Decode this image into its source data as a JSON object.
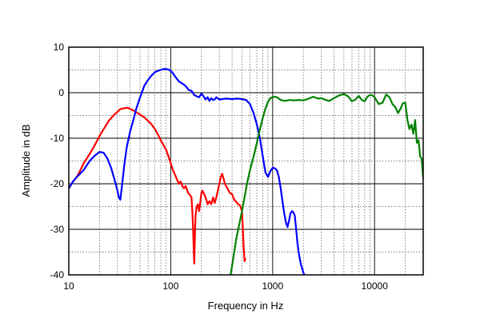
{
  "chart_data": {
    "type": "line",
    "xscale": "log",
    "xlim": [
      10,
      30000
    ],
    "ylim": [
      -40,
      10
    ],
    "xlabel": "Frequency in Hz",
    "ylabel": "Amplitude in dB",
    "grid": true,
    "xticks": [
      10,
      100,
      1000,
      10000
    ],
    "xtick_labels": [
      "10",
      "100",
      "1000",
      "10000"
    ],
    "yticks": [
      10,
      0,
      -10,
      -20,
      -30,
      -40
    ],
    "ytick_labels": [
      "10",
      "0",
      "-10",
      "-20",
      "-30",
      "-40"
    ],
    "series": [
      {
        "color": "#ff0000",
        "x": [
          10,
          11,
          12,
          13,
          14,
          16,
          18,
          20,
          22,
          25,
          28,
          30,
          32,
          35,
          38,
          40,
          43,
          46,
          50,
          55,
          60,
          65,
          70,
          75,
          80,
          85,
          90,
          95,
          100,
          105,
          110,
          115,
          120,
          125,
          130,
          135,
          140,
          148,
          155,
          160,
          163,
          166,
          168,
          170,
          172,
          175,
          180,
          185,
          190,
          195,
          200,
          205,
          210,
          220,
          230,
          240,
          250,
          260,
          270,
          280,
          290,
          300,
          310,
          320,
          340,
          360,
          380,
          400,
          420,
          440,
          460,
          480,
          500,
          510,
          520,
          530,
          540
        ],
        "y": [
          -21,
          -19.5,
          -18.5,
          -17,
          -15.5,
          -13.5,
          -11.5,
          -9.5,
          -8,
          -6,
          -4.8,
          -4.2,
          -3.6,
          -3.4,
          -3.3,
          -3.6,
          -3.9,
          -4.3,
          -4.8,
          -5.4,
          -6.2,
          -7,
          -8,
          -9.2,
          -10.5,
          -11.5,
          -12.5,
          -14,
          -15.5,
          -17,
          -18,
          -19,
          -20,
          -19.5,
          -20.5,
          -21,
          -20.5,
          -22,
          -22.5,
          -23,
          -26,
          -30,
          -34,
          -37.5,
          -33,
          -27,
          -25,
          -24.5,
          -26,
          -24,
          -22,
          -21.5,
          -22,
          -23,
          -24.5,
          -23.8,
          -24.5,
          -23,
          -24.2,
          -23,
          -21.5,
          -20,
          -18.5,
          -17.8,
          -20,
          -21,
          -22,
          -22.3,
          -23.5,
          -24,
          -24.5,
          -24.8,
          -26,
          -30,
          -34,
          -37,
          -36.5
        ]
      },
      {
        "color": "#0000ff",
        "x": [
          10,
          11,
          12,
          14,
          16,
          18,
          20,
          22,
          24,
          26,
          28,
          30,
          31,
          32,
          33,
          35,
          37,
          40,
          43,
          46,
          50,
          55,
          60,
          65,
          70,
          75,
          80,
          85,
          90,
          95,
          100,
          105,
          110,
          120,
          130,
          140,
          150,
          160,
          170,
          180,
          190,
          200,
          210,
          220,
          230,
          240,
          250,
          260,
          270,
          280,
          300,
          350,
          400,
          450,
          500,
          550,
          600,
          650,
          700,
          750,
          800,
          850,
          900,
          950,
          1000,
          1050,
          1100,
          1150,
          1200,
          1250,
          1300,
          1350,
          1400,
          1450,
          1500,
          1550,
          1600,
          1650,
          1700,
          1750,
          1800,
          1850,
          1900,
          2000,
          2100
        ],
        "y": [
          -21,
          -19.5,
          -18.5,
          -17,
          -15,
          -13.8,
          -13,
          -13.2,
          -14.5,
          -16.5,
          -19,
          -21.5,
          -23,
          -23.5,
          -21,
          -16,
          -12,
          -8.5,
          -6,
          -3.5,
          -1,
          1.5,
          2.8,
          3.8,
          4.5,
          4.8,
          5,
          5.2,
          5.2,
          5.1,
          4.8,
          4.3,
          3.6,
          2.5,
          2,
          1.5,
          0.6,
          0.4,
          -0.5,
          -0.8,
          -1,
          -0.2,
          -0.8,
          -1.5,
          -1,
          -1.8,
          -1.2,
          -1.6,
          -1.5,
          -1,
          -1.5,
          -1.3,
          -1.4,
          -1.3,
          -1.4,
          -1.6,
          -2.5,
          -4.5,
          -7,
          -10,
          -14,
          -17.5,
          -18.5,
          -17.2,
          -16.5,
          -16.6,
          -17,
          -18.5,
          -21,
          -24,
          -26.5,
          -28.5,
          -29.5,
          -28,
          -26.5,
          -26,
          -26.3,
          -27,
          -30,
          -33,
          -35,
          -36.5,
          -37.8,
          -39.5,
          -40.5
        ]
      },
      {
        "color": "#008000",
        "x": [
          380,
          400,
          420,
          440,
          470,
          500,
          530,
          560,
          600,
          650,
          700,
          750,
          800,
          850,
          900,
          950,
          1000,
          1050,
          1100,
          1200,
          1300,
          1400,
          1500,
          1600,
          1800,
          2000,
          2200,
          2500,
          2800,
          3000,
          3300,
          3600,
          4000,
          4500,
          5000,
          5500,
          6000,
          6500,
          7000,
          7500,
          8000,
          8500,
          9000,
          9500,
          10000,
          11000,
          12000,
          13000,
          14000,
          15000,
          16000,
          17000,
          18000,
          19000,
          20000,
          21000,
          22000,
          23000,
          24000,
          25000,
          26000,
          27000,
          28000,
          29000,
          30000
        ],
        "y": [
          -41,
          -38,
          -35,
          -32,
          -29,
          -26,
          -23,
          -20,
          -17,
          -14,
          -11,
          -8,
          -5.5,
          -3.5,
          -2,
          -1.2,
          -1,
          -0.9,
          -1,
          -1.6,
          -1.8,
          -1.7,
          -1.6,
          -1.7,
          -1.6,
          -1.7,
          -1.4,
          -0.9,
          -1.3,
          -1.2,
          -1.6,
          -1.8,
          -1.2,
          -0.6,
          -0.3,
          -0.8,
          -1.9,
          -1.5,
          -0.7,
          -1.6,
          -1.9,
          -0.9,
          -0.5,
          -0.6,
          -1,
          -2.5,
          -2.2,
          -0.4,
          -1,
          -2.5,
          -3.2,
          -4.5,
          -3.5,
          -2.3,
          -2.2,
          -6,
          -8,
          -7,
          -9,
          -6,
          -11,
          -10.5,
          -14,
          -14.5,
          -19
        ]
      }
    ]
  }
}
